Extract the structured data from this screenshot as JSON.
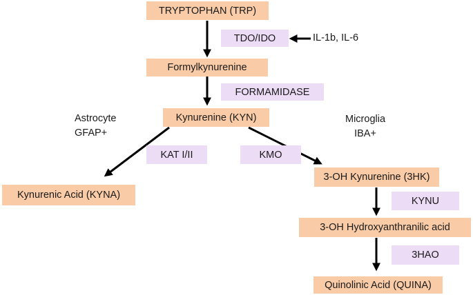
{
  "metabolites": {
    "trp": "TRYPTOPHAN (TRP)",
    "formylkynurenine": "Formylkynurenine",
    "kyn": "Kynurenine (KYN)",
    "kyna": "Kynurenic Acid (KYNA)",
    "hk3": "3-OH Kynurenine (3HK)",
    "haa3": "3-OH Hydroxyanthranilic acid",
    "quina": "Quinolinic Acid (QUINA)"
  },
  "enzymes": {
    "tdo_ido": "TDO/IDO",
    "formamidase": "FORMAMIDASE",
    "kat": "KAT I/II",
    "kmo": "KMO",
    "kynu": "KYNU",
    "hao3": "3HAO"
  },
  "regulators": "IL-1b, IL-6",
  "cell_labels": {
    "astrocyte": {
      "line1": "Astrocyte",
      "line2": "GFAP+"
    },
    "microglia": {
      "line1": "Microglia",
      "line2": "IBA+"
    }
  },
  "colors": {
    "metabolite_fill": "#f9cba6",
    "enzyme_fill": "#ecdcf6",
    "arrow": "#000000"
  }
}
